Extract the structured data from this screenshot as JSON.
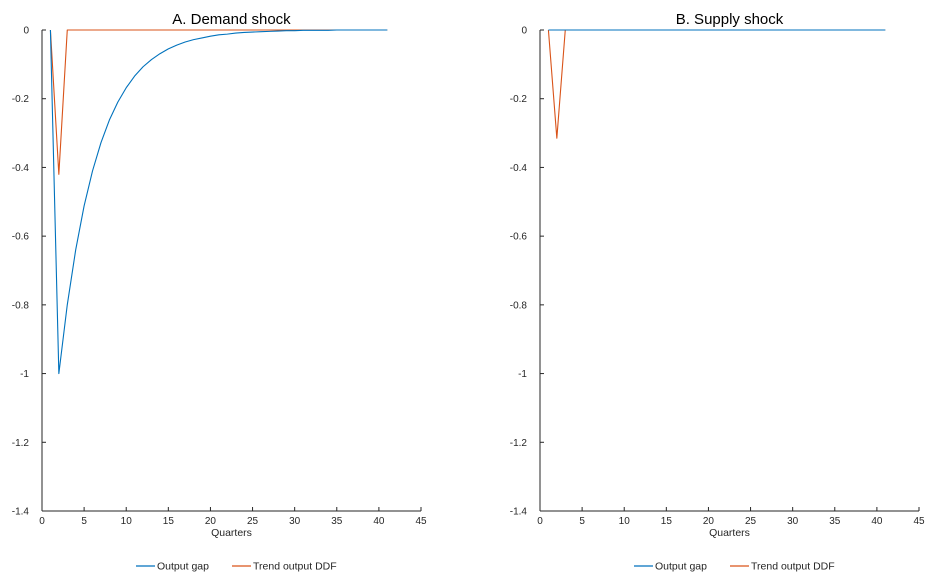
{
  "colors": {
    "output_gap": "#0072BD",
    "trend_output": "#D95319",
    "axis": "#262626"
  },
  "legend": {
    "items": [
      "Output gap",
      "Trend output DDF"
    ],
    "placement": "bottom"
  },
  "chart_data": [
    {
      "type": "line",
      "title": "A. Demand shock",
      "xlabel": "Quarters",
      "ylabel": "",
      "xlim": [
        0,
        45
      ],
      "ylim": [
        -1.4,
        0
      ],
      "xticks": [
        0,
        5,
        10,
        15,
        20,
        25,
        30,
        35,
        40,
        45
      ],
      "yticks": [
        0,
        -0.2,
        -0.4,
        -0.6,
        -0.8,
        -1,
        -1.2,
        -1.4
      ],
      "ytick_labels": [
        "0",
        "-0.2",
        "-0.4",
        "-0.6",
        "-0.8",
        "-1",
        "-1.2",
        "-1.4"
      ],
      "grid": false,
      "legend": "bottom",
      "series": [
        {
          "name": "Output gap",
          "color": "#0072BD",
          "x": [
            1,
            2,
            3,
            4,
            5,
            6,
            7,
            8,
            9,
            10,
            11,
            12,
            13,
            14,
            15,
            16,
            17,
            18,
            19,
            20,
            21,
            22,
            23,
            24,
            25,
            26,
            27,
            28,
            29,
            30,
            31,
            32,
            33,
            34,
            35,
            36,
            37,
            38,
            39,
            40,
            41
          ],
          "y": [
            0,
            -1,
            -0.8,
            -0.64,
            -0.512,
            -0.41,
            -0.328,
            -0.262,
            -0.21,
            -0.168,
            -0.134,
            -0.107,
            -0.086,
            -0.069,
            -0.055,
            -0.044,
            -0.035,
            -0.028,
            -0.023,
            -0.018,
            -0.014,
            -0.012,
            -0.009,
            -0.007,
            -0.006,
            -0.005,
            -0.004,
            -0.003,
            -0.002,
            -0.002,
            -0.001,
            -0.001,
            -0.001,
            -0.001,
            0,
            0,
            0,
            0,
            0,
            0,
            0
          ]
        },
        {
          "name": "Trend output DDF",
          "color": "#D95319",
          "x": [
            1,
            2,
            3,
            4,
            5,
            10,
            20,
            30,
            41
          ],
          "y": [
            0,
            -0.42,
            0,
            0,
            0,
            0,
            0,
            0,
            0
          ]
        }
      ]
    },
    {
      "type": "line",
      "title": "B. Supply shock",
      "xlabel": "Quarters",
      "ylabel": "",
      "xlim": [
        0,
        45
      ],
      "ylim": [
        -1.4,
        0
      ],
      "xticks": [
        0,
        5,
        10,
        15,
        20,
        25,
        30,
        35,
        40,
        45
      ],
      "yticks": [
        0,
        -0.2,
        -0.4,
        -0.6,
        -0.8,
        -1,
        -1.2,
        -1.4
      ],
      "ytick_labels": [
        "0",
        "-0.2",
        "-0.4",
        "-0.6",
        "-0.8",
        "-1",
        "-1.2",
        "-1.4"
      ],
      "grid": false,
      "legend": "bottom",
      "series": [
        {
          "name": "Output gap",
          "color": "#0072BD",
          "x": [
            1,
            2,
            3,
            4,
            10,
            20,
            30,
            41
          ],
          "y": [
            0,
            0,
            0,
            0,
            0,
            0,
            0,
            0
          ]
        },
        {
          "name": "Trend output DDF",
          "color": "#D95319",
          "x": [
            1,
            2,
            3,
            4,
            10,
            20,
            30,
            41
          ],
          "y": [
            0,
            -0.315,
            0,
            0,
            0,
            0,
            0,
            0
          ]
        }
      ]
    }
  ]
}
